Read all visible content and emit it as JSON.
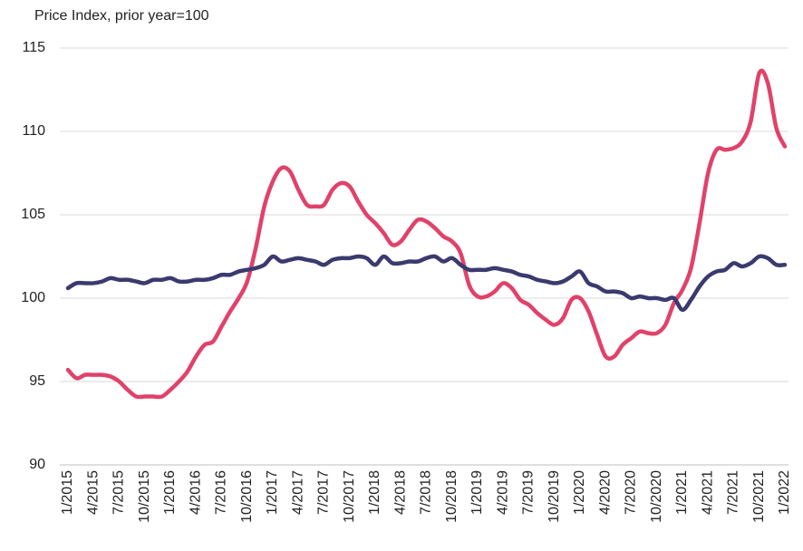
{
  "chart_data": {
    "type": "line",
    "y_label": "Price Index, prior year=100",
    "categories": [
      "1/2015",
      null,
      null,
      "4/2015",
      null,
      null,
      "7/2015",
      null,
      null,
      "10/2015",
      null,
      null,
      "1/2016",
      null,
      null,
      "4/2016",
      null,
      null,
      "7/2016",
      null,
      null,
      "10/2016",
      null,
      null,
      "1/2017",
      null,
      null,
      "4/2017",
      null,
      null,
      "7/2017",
      null,
      null,
      "10/2017",
      null,
      null,
      "1/2018",
      null,
      null,
      "4/2018",
      null,
      null,
      "7/2018",
      null,
      null,
      "10/2018",
      null,
      null,
      "1/2019",
      null,
      null,
      "4/2019",
      null,
      null,
      "7/2019",
      null,
      null,
      "10/2019",
      null,
      null,
      "1/2020",
      null,
      null,
      "4/2020",
      null,
      null,
      "7/2020",
      null,
      null,
      "10/2020",
      null,
      null,
      "1/2021",
      null,
      null,
      "4/2021",
      null,
      null,
      "7/2021",
      null,
      null,
      "10/2021",
      null,
      null,
      "1/2022"
    ],
    "series": [
      {
        "color": "#e0426a",
        "values": [
          95.7,
          95.2,
          95.4,
          95.4,
          95.4,
          95.3,
          95.0,
          94.5,
          94.1,
          94.1,
          94.1,
          94.1,
          94.5,
          95.0,
          95.6,
          96.5,
          97.2,
          97.4,
          98.3,
          99.2,
          100.0,
          101.0,
          103.0,
          105.5,
          107.0,
          107.8,
          107.6,
          106.5,
          105.6,
          105.5,
          105.6,
          106.5,
          106.9,
          106.7,
          105.8,
          105.0,
          104.5,
          103.9,
          103.2,
          103.4,
          104.1,
          104.7,
          104.6,
          104.2,
          103.7,
          103.4,
          102.7,
          100.8,
          100.1,
          100.1,
          100.4,
          100.9,
          100.6,
          99.9,
          99.6,
          99.1,
          98.7,
          98.4,
          98.8,
          99.9,
          100.0,
          99.2,
          97.8,
          96.5,
          96.5,
          97.2,
          97.6,
          98.0,
          97.9,
          97.9,
          98.4,
          99.7,
          100.5,
          101.8,
          104.5,
          107.5,
          108.9,
          108.9,
          109.0,
          109.4,
          110.6,
          113.5,
          112.9,
          110.2,
          109.1
        ]
      },
      {
        "color": "#3b3a6e",
        "values": [
          100.6,
          100.9,
          100.9,
          100.9,
          101.0,
          101.2,
          101.1,
          101.1,
          101.0,
          100.9,
          101.1,
          101.1,
          101.2,
          101.0,
          101.0,
          101.1,
          101.1,
          101.2,
          101.4,
          101.4,
          101.6,
          101.7,
          101.8,
          102.0,
          102.5,
          102.2,
          102.3,
          102.4,
          102.3,
          102.2,
          102.0,
          102.3,
          102.4,
          102.4,
          102.5,
          102.4,
          102.0,
          102.5,
          102.1,
          102.1,
          102.2,
          102.2,
          102.4,
          102.5,
          102.2,
          102.4,
          102.0,
          101.7,
          101.7,
          101.7,
          101.8,
          101.7,
          101.6,
          101.4,
          101.3,
          101.1,
          101.0,
          100.9,
          101.0,
          101.3,
          101.6,
          100.9,
          100.7,
          100.4,
          100.4,
          100.3,
          100.0,
          100.1,
          100.0,
          100.0,
          99.9,
          100.0,
          99.3,
          99.9,
          100.7,
          101.3,
          101.6,
          101.7,
          102.1,
          101.9,
          102.1,
          102.5,
          102.4,
          102.0,
          102.0
        ]
      }
    ],
    "ylim": [
      90,
      115
    ],
    "yticks": [
      90,
      95,
      100,
      105,
      110,
      115
    ],
    "grid": true
  }
}
